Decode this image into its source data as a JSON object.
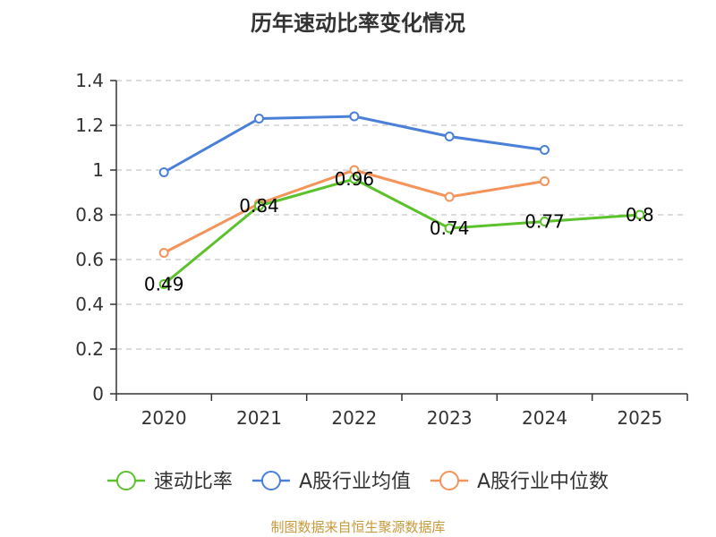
{
  "chart_data": {
    "type": "line",
    "title": "历年速动比率变化情况",
    "xlabel": "",
    "ylabel": "",
    "categories": [
      "2020",
      "2021",
      "2022",
      "2023",
      "2024",
      "2025"
    ],
    "ylim": [
      0,
      1.4
    ],
    "yticks": [
      0,
      0.2,
      0.4,
      0.6,
      0.8,
      1,
      1.2,
      1.4
    ],
    "ytick_labels": [
      "0",
      "0.2",
      "0.4",
      "0.6",
      "0.8",
      "1",
      "1.2",
      "1.4"
    ],
    "grid": true,
    "legend_position": "bottom",
    "series": [
      {
        "name": "速动比率",
        "color": "#5cc22c",
        "values": [
          0.49,
          0.84,
          0.96,
          0.74,
          0.77,
          0.8
        ],
        "labels": [
          "0.49",
          "0.84",
          "0.96",
          "0.74",
          "0.77",
          "0.8"
        ]
      },
      {
        "name": "A股行业均值",
        "color": "#4a80d8",
        "values": [
          0.99,
          1.23,
          1.24,
          1.15,
          1.09,
          null
        ]
      },
      {
        "name": "A股行业中位数",
        "color": "#f4935a",
        "values": [
          0.63,
          0.85,
          1.0,
          0.88,
          0.95,
          null
        ]
      }
    ],
    "source": "制图数据来自恒生聚源数据库"
  }
}
